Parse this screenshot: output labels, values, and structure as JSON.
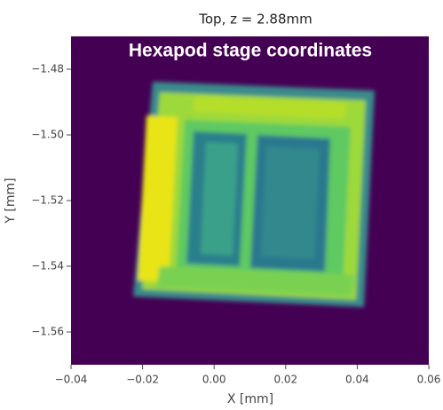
{
  "chart_data": {
    "type": "image",
    "title": "Top, z = 2.88mm",
    "annotation": "Hexapod stage coordinates",
    "xlabel": "X [mm]",
    "ylabel": "Y [mm]",
    "xlim": [
      -0.04,
      0.06
    ],
    "ylim": [
      -1.57,
      -1.47
    ],
    "xticks": [
      {
        "value": -0.04,
        "label": "−0.04"
      },
      {
        "value": -0.02,
        "label": "−0.02"
      },
      {
        "value": 0,
        "label": "0.00"
      },
      {
        "value": 0.02,
        "label": "0.02"
      },
      {
        "value": 0.04,
        "label": "0.04"
      },
      {
        "value": 0.06,
        "label": "0.06"
      }
    ],
    "yticks": [
      {
        "value": -1.48,
        "label": "−1.48"
      },
      {
        "value": -1.5,
        "label": "−1.50"
      },
      {
        "value": -1.52,
        "label": "−1.52"
      },
      {
        "value": -1.54,
        "label": "−1.54"
      },
      {
        "value": -1.56,
        "label": "−1.56"
      }
    ]
  }
}
